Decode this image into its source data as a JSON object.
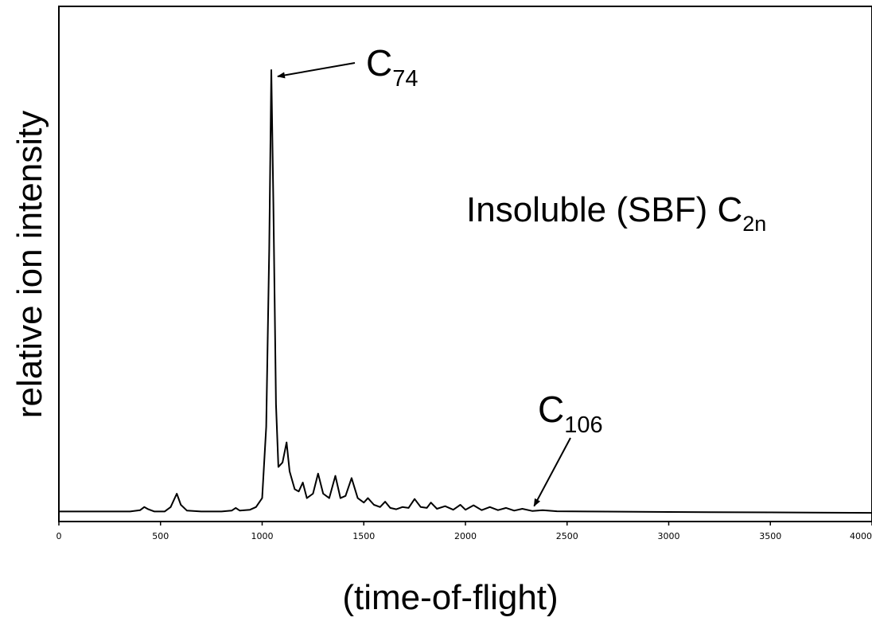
{
  "chart_data": {
    "type": "line",
    "title": "",
    "xlabel": "(time-of-flight)",
    "ylabel": "relative ion intensity",
    "xlim": [
      0,
      4000
    ],
    "ylim": [
      0,
      100
    ],
    "xticks": [
      0,
      500,
      1000,
      1500,
      2000,
      2500,
      3000,
      3500,
      4000
    ],
    "grid": false,
    "legend": "none",
    "series": [
      {
        "line_color": "#000000",
        "points": [
          [
            0,
            1.0
          ],
          [
            350,
            1.0
          ],
          [
            400,
            1.3
          ],
          [
            420,
            2.0
          ],
          [
            440,
            1.5
          ],
          [
            470,
            1.0
          ],
          [
            520,
            1.0
          ],
          [
            550,
            2.0
          ],
          [
            580,
            5.0
          ],
          [
            600,
            2.5
          ],
          [
            630,
            1.2
          ],
          [
            700,
            1.0
          ],
          [
            800,
            1.0
          ],
          [
            850,
            1.2
          ],
          [
            870,
            1.8
          ],
          [
            890,
            1.2
          ],
          [
            940,
            1.4
          ],
          [
            970,
            2.0
          ],
          [
            1000,
            4.0
          ],
          [
            1020,
            20.0
          ],
          [
            1035,
            60.0
          ],
          [
            1045,
            100.0
          ],
          [
            1055,
            70.0
          ],
          [
            1068,
            25.0
          ],
          [
            1080,
            11.0
          ],
          [
            1100,
            12.0
          ],
          [
            1120,
            16.5
          ],
          [
            1135,
            10.0
          ],
          [
            1160,
            6.0
          ],
          [
            1180,
            5.5
          ],
          [
            1200,
            7.5
          ],
          [
            1220,
            4.0
          ],
          [
            1250,
            5.0
          ],
          [
            1275,
            9.5
          ],
          [
            1300,
            5.0
          ],
          [
            1330,
            4.0
          ],
          [
            1360,
            9.0
          ],
          [
            1385,
            4.0
          ],
          [
            1410,
            4.5
          ],
          [
            1440,
            8.5
          ],
          [
            1470,
            4.0
          ],
          [
            1500,
            3.0
          ],
          [
            1520,
            4.0
          ],
          [
            1550,
            2.5
          ],
          [
            1580,
            2.0
          ],
          [
            1605,
            3.2
          ],
          [
            1630,
            1.8
          ],
          [
            1660,
            1.5
          ],
          [
            1690,
            2.0
          ],
          [
            1720,
            1.8
          ],
          [
            1750,
            3.8
          ],
          [
            1780,
            2.0
          ],
          [
            1810,
            1.8
          ],
          [
            1830,
            3.0
          ],
          [
            1860,
            1.6
          ],
          [
            1900,
            2.2
          ],
          [
            1940,
            1.4
          ],
          [
            1975,
            2.5
          ],
          [
            2000,
            1.4
          ],
          [
            2040,
            2.4
          ],
          [
            2080,
            1.3
          ],
          [
            2120,
            2.0
          ],
          [
            2160,
            1.3
          ],
          [
            2200,
            1.8
          ],
          [
            2240,
            1.2
          ],
          [
            2280,
            1.6
          ],
          [
            2330,
            1.1
          ],
          [
            2380,
            1.3
          ],
          [
            2450,
            1.05
          ],
          [
            2600,
            1.0
          ],
          [
            3000,
            0.9
          ],
          [
            3500,
            0.8
          ],
          [
            4000,
            0.7
          ]
        ]
      }
    ],
    "annotations": [
      {
        "base": "C",
        "sub": "74",
        "x": 1045,
        "y": 100
      },
      {
        "base": "Insoluble (SBF) C",
        "sub": "2n"
      },
      {
        "base": "C",
        "sub": "106",
        "x": 2330,
        "y": 1.5
      }
    ]
  }
}
